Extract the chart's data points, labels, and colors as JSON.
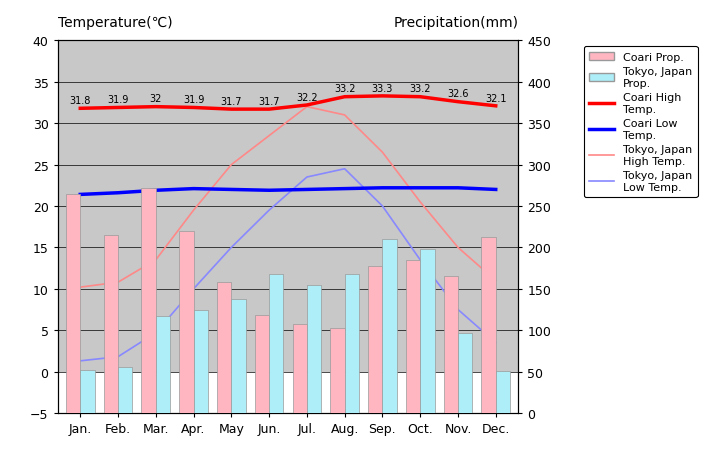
{
  "months": [
    "Jan.",
    "Feb.",
    "Mar.",
    "Apr.",
    "May",
    "Jun.",
    "Jul.",
    "Aug.",
    "Sep.",
    "Oct.",
    "Nov.",
    "Dec."
  ],
  "coari_precip_mm": [
    265,
    215,
    272,
    220,
    158,
    118,
    108,
    103,
    177,
    185,
    165,
    213
  ],
  "tokyo_precip_mm": [
    52,
    56,
    117,
    125,
    138,
    168,
    154,
    168,
    210,
    198,
    97,
    51
  ],
  "coari_high": [
    31.8,
    31.9,
    32.0,
    31.9,
    31.7,
    31.7,
    32.2,
    33.2,
    33.3,
    33.2,
    32.6,
    32.1
  ],
  "coari_low": [
    21.4,
    21.6,
    21.9,
    22.1,
    22.0,
    21.9,
    22.0,
    22.1,
    22.2,
    22.2,
    22.2,
    22.0
  ],
  "tokyo_high": [
    10.2,
    10.8,
    13.5,
    19.5,
    25.0,
    28.5,
    32.0,
    31.0,
    26.5,
    20.5,
    15.0,
    11.0
  ],
  "tokyo_low": [
    1.3,
    1.8,
    4.7,
    10.0,
    15.0,
    19.5,
    23.5,
    24.5,
    20.0,
    13.5,
    7.5,
    3.5
  ],
  "coari_high_labels": [
    "31.8",
    "31.9",
    "32",
    "31.9",
    "31.7",
    "31.7",
    "32.2",
    "33.2",
    "33.3",
    "33.2",
    "32.6",
    "32.1"
  ],
  "title_left": "Temperature(℃)",
  "title_right": "Precipitation(mm)",
  "ylim_temp": [
    -5,
    40
  ],
  "ylim_precip": [
    0,
    450
  ],
  "coari_precip_color": "#FFB6C1",
  "tokyo_precip_color": "#AEEEF8",
  "coari_high_color": "#FF0000",
  "coari_low_color": "#0000FF",
  "tokyo_high_color": "#FF8888",
  "tokyo_low_color": "#8888FF",
  "bg_gray_color": "#C8C8C8",
  "bg_white_color": "#FFFFFF",
  "grid_color": "#000000"
}
